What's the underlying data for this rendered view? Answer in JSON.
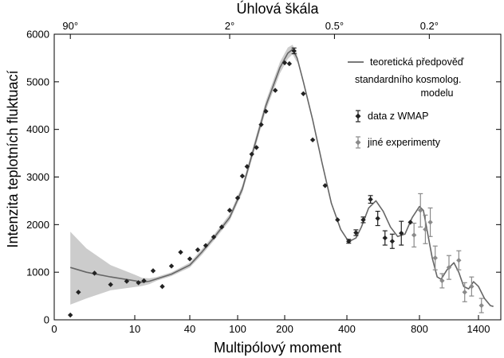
{
  "chart_data": {
    "type": "scatter",
    "title": "",
    "top_axis_title": "Úhlová škála",
    "xlabel": "Multipólový moment",
    "ylabel": "Intenzita teplotních fluktuací",
    "ylim": [
      0,
      6000
    ],
    "y_ticks": [
      0,
      1000,
      2000,
      3000,
      4000,
      5000,
      6000
    ],
    "x_ticks": [
      {
        "label": "0",
        "at": 0
      },
      {
        "label": "10",
        "at": 10
      },
      {
        "label": "40",
        "at": 40
      },
      {
        "label": "100",
        "at": 100
      },
      {
        "label": "200",
        "at": 200
      },
      {
        "label": "400",
        "at": 400
      },
      {
        "label": "800",
        "at": 800
      },
      {
        "label": "1400",
        "at": 1400
      }
    ],
    "x_scale_note": "nonlinear (compressed) multipole axis",
    "top_ticks": [
      {
        "label": "90°",
        "at": 2
      },
      {
        "label": "2°",
        "at": 90
      },
      {
        "label": "0.5°",
        "at": 360
      },
      {
        "label": "0.2°",
        "at": 900
      }
    ],
    "legend": {
      "placement": "top-right",
      "entries": [
        {
          "label_lines": [
            "teoretická předpověď",
            "standardního kosmolog.",
            "modelu"
          ],
          "kind": "line",
          "color": "#666666"
        },
        {
          "label_lines": [
            "data z WMAP"
          ],
          "kind": "marker",
          "color": "#222222"
        },
        {
          "label_lines": [
            "jiné experimenty"
          ],
          "kind": "marker",
          "color": "#8a8a8a"
        }
      ]
    },
    "series": [
      {
        "name": "teoretická předpověď standardního kosmolog. modelu",
        "kind": "line",
        "color": "#666666",
        "x": [
          2,
          4,
          7,
          10,
          14,
          18,
          22,
          30,
          40,
          55,
          70,
          90,
          110,
          130,
          160,
          190,
          210,
          225,
          240,
          260,
          290,
          320,
          350,
          380,
          400,
          420,
          450,
          480,
          520,
          560,
          600,
          640,
          680,
          720,
          760,
          800,
          840,
          880,
          930,
          980,
          1020,
          1080,
          1150,
          1200,
          1250,
          1300,
          1350,
          1400,
          1440,
          1480,
          1500
        ],
        "y": [
          1100,
          1000,
          900,
          820,
          790,
          810,
          860,
          960,
          1150,
          1420,
          1720,
          2150,
          2750,
          3450,
          4500,
          5300,
          5600,
          5680,
          5500,
          5000,
          4200,
          3300,
          2450,
          1900,
          1700,
          1660,
          1720,
          1950,
          2350,
          2500,
          2280,
          1950,
          1750,
          1800,
          2150,
          2380,
          2300,
          1850,
          1300,
          900,
          850,
          1050,
          1200,
          1000,
          700,
          650,
          800,
          700,
          450,
          300,
          280
        ]
      },
      {
        "name": "cosmic variance band",
        "kind": "band",
        "color": "#cccccc",
        "x": [
          2,
          4,
          7,
          10,
          14,
          18,
          22,
          30,
          40,
          55,
          70,
          90,
          110,
          130,
          160,
          190,
          210,
          225,
          240
        ],
        "upper": [
          1850,
          1500,
          1150,
          950,
          880,
          870,
          900,
          1000,
          1200,
          1480,
          1780,
          2220,
          2830,
          3540,
          4600,
          5420,
          5720,
          5780,
          5600
        ],
        "lower": [
          320,
          450,
          620,
          690,
          710,
          750,
          820,
          920,
          1100,
          1360,
          1660,
          2080,
          2670,
          3360,
          4400,
          5180,
          5480,
          5580,
          5400
        ]
      },
      {
        "name": "data z WMAP",
        "kind": "scatter",
        "color": "#222222",
        "x": [
          2,
          3,
          5,
          7,
          9,
          12,
          15,
          20,
          25,
          30,
          35,
          40,
          50,
          60,
          70,
          80,
          90,
          100,
          110,
          120,
          130,
          140,
          150,
          160,
          180,
          200,
          215,
          230,
          260,
          290,
          330,
          370,
          410,
          450,
          490,
          530,
          570,
          610,
          650,
          700,
          750
        ],
        "y": [
          100,
          580,
          980,
          740,
          810,
          780,
          820,
          1030,
          700,
          1130,
          1420,
          1280,
          1470,
          1560,
          1740,
          1950,
          2300,
          2560,
          3020,
          3220,
          3480,
          3620,
          4100,
          4380,
          4820,
          5400,
          5380,
          5650,
          4750,
          3780,
          2820,
          2100,
          1650,
          1830,
          2100,
          2530,
          2130,
          1720,
          1650,
          1820,
          2050
        ],
        "err": [
          0,
          0,
          0,
          0,
          0,
          0,
          0,
          0,
          0,
          0,
          0,
          0,
          0,
          0,
          0,
          0,
          0,
          0,
          0,
          0,
          0,
          0,
          0,
          0,
          0,
          0,
          0,
          60,
          0,
          0,
          0,
          0,
          40,
          60,
          60,
          80,
          150,
          150,
          150,
          250,
          0
        ]
      },
      {
        "name": "jiné experimenty",
        "kind": "scatter",
        "color": "#8a8a8a",
        "x": [
          770,
          810,
          860,
          910,
          960,
          1030,
          1100,
          1200,
          1260,
          1330,
          1420
        ],
        "y": [
          1780,
          2300,
          1900,
          2050,
          1300,
          820,
          1100,
          1250,
          580,
          700,
          300
        ],
        "err": [
          250,
          350,
          300,
          300,
          250,
          150,
          250,
          200,
          200,
          200,
          150
        ]
      }
    ]
  }
}
